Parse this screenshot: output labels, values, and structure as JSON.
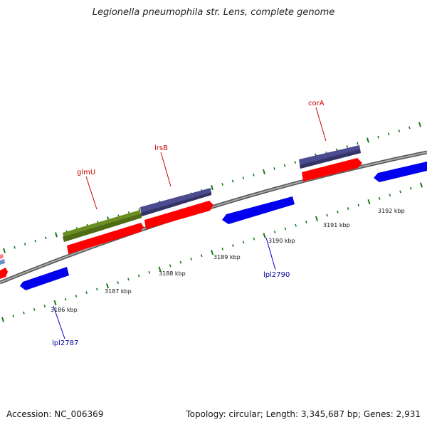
{
  "title": "Legionella pneumophila str. Lens, complete genome",
  "footer": {
    "accession": "Accession: NC_006369",
    "summary": "Topology: circular; Length: 3,345,687 bp; Genes: 2,931"
  },
  "scale_labels": [
    "3186 kbp",
    "3187 kbp",
    "3188 kbp",
    "3189 kbp",
    "3190 kbp",
    "3191 kbp",
    "3192 kbp"
  ],
  "gene_labels": {
    "glmU": "glmU",
    "lrsB": "lrsB",
    "corA": "corA",
    "lpl2787": "lpl2787",
    "lpl2790": "lpl2790"
  },
  "colors": {
    "backbone": "#888888",
    "tick": "#1a7a1a",
    "forward_gene": "#4b4b8f",
    "cds": "#ff0000",
    "reverse_gene": "#0000ee",
    "glmU_gene": "#6b8e23",
    "label_red": "#cc0000",
    "label_blue": "#000099"
  }
}
